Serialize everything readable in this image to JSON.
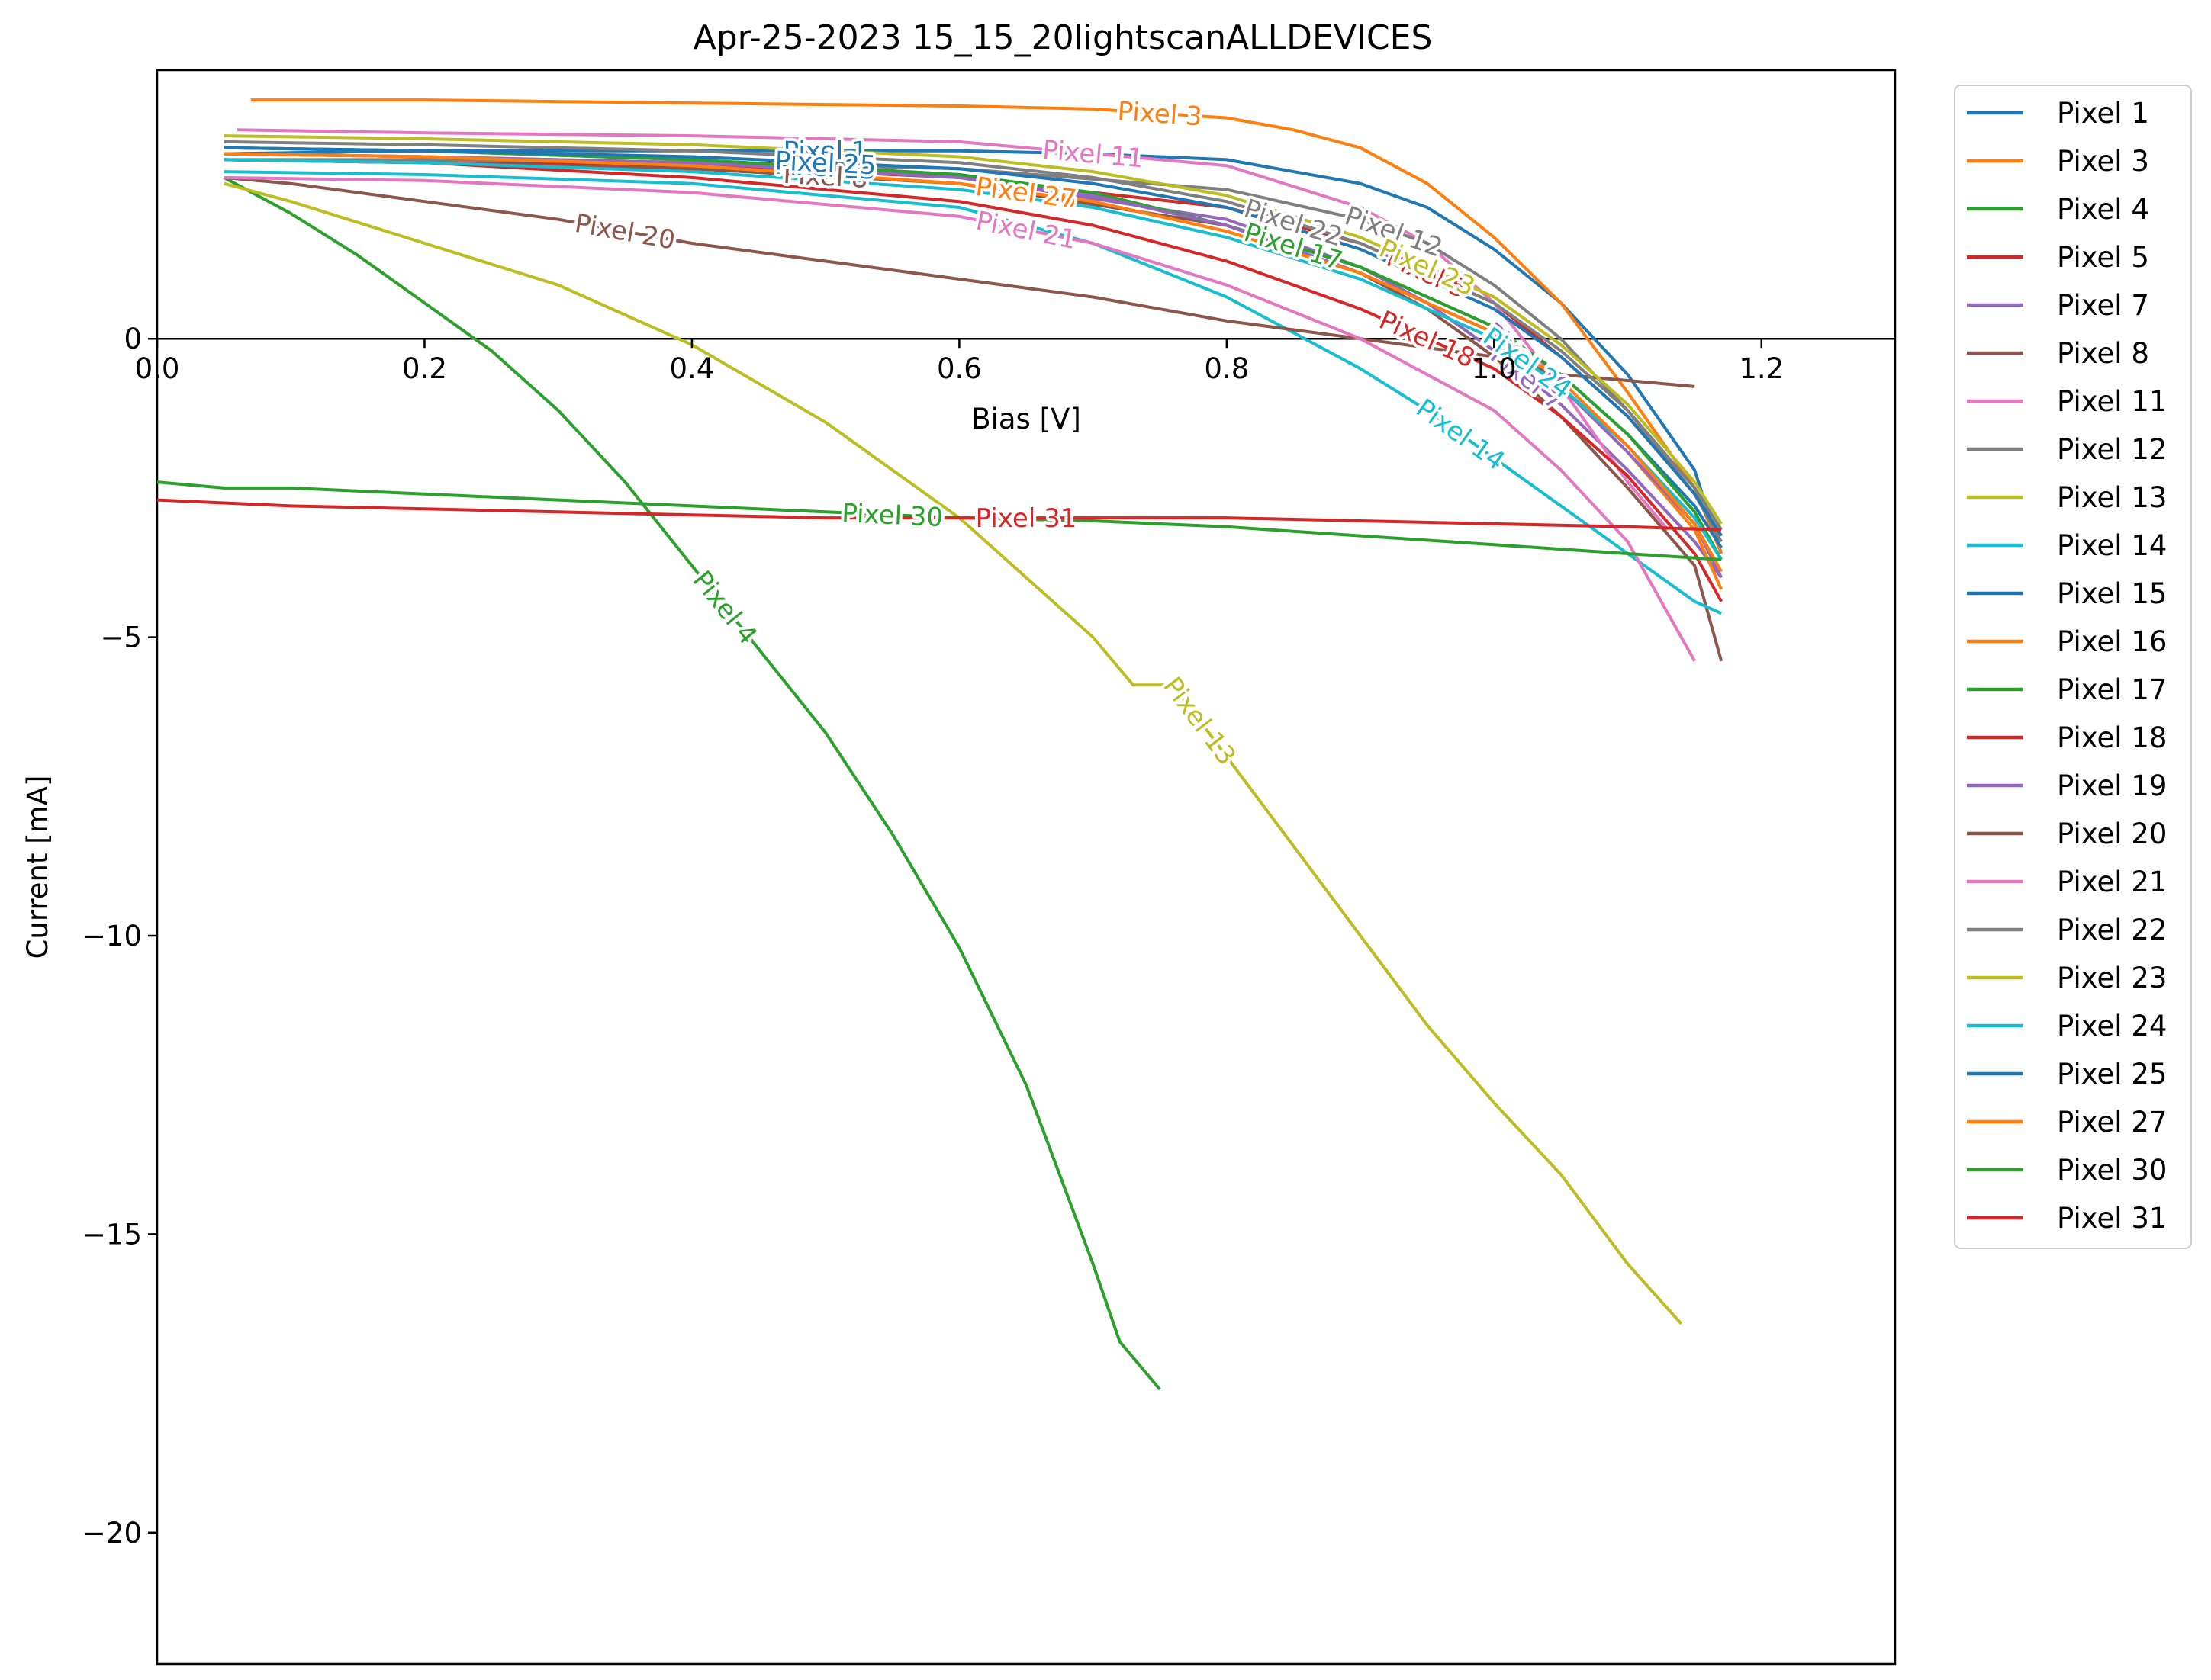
{
  "chart_data": {
    "type": "line",
    "title": "Apr-25-2023 15_15_20lightscanALLDEVICES",
    "xlabel": "Bias [V]",
    "ylabel": "Current [mA]",
    "xlim": [
      0.0,
      1.3
    ],
    "ylim": [
      -22.2,
      4.5
    ],
    "xticks": [
      0.0,
      0.2,
      0.4,
      0.6,
      0.8,
      1.0,
      1.2
    ],
    "xtick_labels": [
      "0.0",
      "0.2",
      "0.4",
      "0.6",
      "0.8",
      "1.0",
      "1.2"
    ],
    "yticks": [
      0,
      -5,
      -10,
      -15,
      -20
    ],
    "ytick_labels": [
      "0",
      "−5",
      "−10",
      "−15",
      "−20"
    ],
    "grid": false,
    "legend_position": "outside-right",
    "series": [
      {
        "name": "Pixel 1",
        "color": "#1f77b4",
        "x": [
          0.05,
          0.2,
          0.4,
          0.6,
          0.7,
          0.8,
          0.9,
          0.95,
          1.0,
          1.05,
          1.1,
          1.15,
          1.17
        ],
        "y": [
          3.1,
          3.15,
          3.15,
          3.15,
          3.1,
          3.0,
          2.6,
          2.2,
          1.5,
          0.6,
          -0.6,
          -2.2,
          -3.6
        ],
        "label": "Pixel 1"
      },
      {
        "name": "Pixel 3",
        "color": "#ff7f0e",
        "x": [
          0.07,
          0.2,
          0.4,
          0.6,
          0.7,
          0.8,
          0.85,
          0.9,
          0.95,
          1.0,
          1.05,
          1.1,
          1.15,
          1.17
        ],
        "y": [
          4.0,
          4.0,
          3.95,
          3.9,
          3.85,
          3.7,
          3.5,
          3.2,
          2.6,
          1.7,
          0.6,
          -0.9,
          -2.5,
          -3.6
        ],
        "label": "Pixel 3"
      },
      {
        "name": "Pixel 4",
        "color": "#2ca02c",
        "x": [
          0.05,
          0.1,
          0.15,
          0.2,
          0.25,
          0.3,
          0.35,
          0.4,
          0.45,
          0.5,
          0.55,
          0.6,
          0.65,
          0.7,
          0.72,
          0.75
        ],
        "y": [
          2.7,
          2.1,
          1.4,
          0.6,
          -0.2,
          -1.2,
          -2.4,
          -3.8,
          -5.2,
          -6.6,
          -8.3,
          -10.2,
          -12.5,
          -15.5,
          -16.8,
          -17.6
        ],
        "label": "Pixel 4"
      },
      {
        "name": "Pixel 5",
        "color": "#d62728",
        "x": [
          0.05,
          0.2,
          0.4,
          0.6,
          0.8,
          0.9,
          1.0,
          1.05,
          1.1,
          1.15,
          1.17
        ],
        "y": [
          3.0,
          2.95,
          2.9,
          2.7,
          2.2,
          1.6,
          0.6,
          -0.3,
          -1.3,
          -2.6,
          -3.3
        ],
        "label": "Pixel 5"
      },
      {
        "name": "Pixel 7",
        "color": "#9467bd",
        "x": [
          0.05,
          0.2,
          0.4,
          0.6,
          0.8,
          0.9,
          0.95,
          1.0,
          1.05,
          1.1,
          1.15,
          1.17
        ],
        "y": [
          3.1,
          3.05,
          2.95,
          2.7,
          2.0,
          1.2,
          0.6,
          -0.2,
          -1.1,
          -2.2,
          -3.4,
          -4.0
        ],
        "label": "Pixel 7"
      },
      {
        "name": "Pixel 8",
        "color": "#8c564b",
        "x": [
          0.05,
          0.2,
          0.4,
          0.6,
          0.8,
          0.9,
          0.95,
          1.0,
          1.05,
          1.1,
          1.15,
          1.17
        ],
        "y": [
          3.0,
          2.95,
          2.85,
          2.6,
          1.9,
          1.1,
          0.5,
          -0.3,
          -1.3,
          -2.5,
          -3.8,
          -5.4
        ],
        "label": "Pixel 8"
      },
      {
        "name": "Pixel 11",
        "color": "#e377c2",
        "x": [
          0.06,
          0.2,
          0.4,
          0.6,
          0.8,
          0.9,
          0.95,
          1.0,
          1.05,
          1.1,
          1.13
        ],
        "y": [
          3.5,
          3.45,
          3.4,
          3.3,
          2.9,
          2.2,
          1.6,
          0.6,
          -0.8,
          -2.4,
          -3.2
        ],
        "label": "Pixel 11"
      },
      {
        "name": "Pixel 12",
        "color": "#7f7f7f",
        "x": [
          0.05,
          0.2,
          0.4,
          0.6,
          0.8,
          0.9,
          0.95,
          1.0,
          1.05,
          1.1,
          1.15,
          1.17
        ],
        "y": [
          3.0,
          3.0,
          2.95,
          2.85,
          2.5,
          2.0,
          1.6,
          0.9,
          0.0,
          -1.2,
          -2.6,
          -3.4
        ],
        "label": "Pixel 12"
      },
      {
        "name": "Pixel 13",
        "color": "#bcbd22",
        "x": [
          0.05,
          0.1,
          0.2,
          0.3,
          0.4,
          0.5,
          0.6,
          0.7,
          0.73,
          0.76,
          0.8,
          0.85,
          0.9,
          0.95,
          1.0,
          1.05,
          1.1,
          1.14
        ],
        "y": [
          2.6,
          2.3,
          1.6,
          0.9,
          -0.1,
          -1.4,
          -3.0,
          -5.0,
          -5.8,
          -5.8,
          -7.0,
          -8.5,
          -10.0,
          -11.5,
          -12.8,
          -14.0,
          -15.5,
          -16.5
        ],
        "label": "Pixel 13"
      },
      {
        "name": "Pixel 14",
        "color": "#17becf",
        "x": [
          0.05,
          0.2,
          0.4,
          0.6,
          0.7,
          0.8,
          0.85,
          0.9,
          0.95,
          1.0,
          1.05,
          1.1,
          1.15,
          1.17
        ],
        "y": [
          2.8,
          2.75,
          2.6,
          2.2,
          1.6,
          0.7,
          0.1,
          -0.5,
          -1.2,
          -2.0,
          -2.8,
          -3.6,
          -4.4,
          -4.6
        ],
        "label": "Pixel 14"
      },
      {
        "name": "Pixel 15",
        "color": "#1f77b4",
        "x": [
          0.05,
          0.2,
          0.4,
          0.6,
          0.7,
          0.8,
          0.9,
          1.0,
          1.05,
          1.1,
          1.15,
          1.17
        ],
        "y": [
          3.2,
          3.15,
          3.0,
          2.75,
          2.4,
          1.9,
          1.2,
          0.2,
          -0.6,
          -1.6,
          -2.8,
          -3.5
        ],
        "label": "Pixel 15"
      },
      {
        "name": "Pixel 16",
        "color": "#ff7f0e",
        "x": [
          0.05,
          0.2,
          0.4,
          0.6,
          0.7,
          0.8,
          0.9,
          1.0,
          1.05,
          1.1,
          1.15,
          1.17
        ],
        "y": [
          3.1,
          3.05,
          2.9,
          2.6,
          2.3,
          1.8,
          1.1,
          0.1,
          -0.8,
          -1.9,
          -3.2,
          -4.2
        ],
        "label": "Pixel 16"
      },
      {
        "name": "Pixel 17",
        "color": "#2ca02c",
        "x": [
          0.05,
          0.2,
          0.4,
          0.6,
          0.7,
          0.8,
          0.9,
          1.0,
          1.05,
          1.1,
          1.15,
          1.17
        ],
        "y": [
          3.2,
          3.15,
          3.0,
          2.75,
          2.45,
          1.9,
          1.2,
          0.2,
          -0.6,
          -1.6,
          -2.9,
          -3.7
        ],
        "label": "Pixel 17"
      },
      {
        "name": "Pixel 18",
        "color": "#d62728",
        "x": [
          0.05,
          0.2,
          0.4,
          0.6,
          0.7,
          0.8,
          0.9,
          1.0,
          1.05,
          1.1,
          1.15,
          1.17
        ],
        "y": [
          3.0,
          2.95,
          2.7,
          2.3,
          1.9,
          1.3,
          0.5,
          -0.5,
          -1.3,
          -2.3,
          -3.6,
          -4.4
        ],
        "label": "Pixel 18"
      },
      {
        "name": "Pixel 19",
        "color": "#9467bd",
        "x": [
          0.05,
          0.2,
          0.4,
          0.6,
          0.7,
          0.8,
          0.9,
          1.0,
          1.05,
          1.1,
          1.15,
          1.17
        ],
        "y": [
          3.1,
          3.05,
          2.95,
          2.7,
          2.4,
          1.9,
          1.1,
          0.1,
          -0.8,
          -1.9,
          -3.1,
          -4.0
        ],
        "label": "Pixel 19"
      },
      {
        "name": "Pixel 20",
        "color": "#8c564b",
        "x": [
          0.05,
          0.1,
          0.2,
          0.3,
          0.4,
          0.5,
          0.6,
          0.7,
          0.8,
          0.9,
          1.0,
          1.05,
          1.1,
          1.15
        ],
        "y": [
          2.7,
          2.6,
          2.3,
          2.0,
          1.6,
          1.3,
          1.0,
          0.7,
          0.3,
          0.0,
          -0.3,
          -0.6,
          -0.7,
          -0.8
        ],
        "label": "Pixel 20"
      },
      {
        "name": "Pixel 21",
        "color": "#e377c2",
        "x": [
          0.05,
          0.2,
          0.4,
          0.6,
          0.7,
          0.8,
          0.9,
          1.0,
          1.05,
          1.1,
          1.15
        ],
        "y": [
          2.7,
          2.65,
          2.45,
          2.05,
          1.6,
          0.9,
          0.0,
          -1.2,
          -2.2,
          -3.4,
          -5.4
        ],
        "label": "Pixel 21"
      },
      {
        "name": "Pixel 22",
        "color": "#7f7f7f",
        "x": [
          0.05,
          0.2,
          0.4,
          0.6,
          0.7,
          0.8,
          0.9,
          1.0,
          1.05,
          1.1,
          1.15,
          1.17
        ],
        "y": [
          3.3,
          3.25,
          3.15,
          2.95,
          2.7,
          2.3,
          1.6,
          0.6,
          -0.2,
          -1.2,
          -2.5,
          -3.2
        ],
        "label": "Pixel 22"
      },
      {
        "name": "Pixel 23",
        "color": "#bcbd22",
        "x": [
          0.05,
          0.2,
          0.4,
          0.6,
          0.7,
          0.8,
          0.9,
          1.0,
          1.05,
          1.1,
          1.15,
          1.17
        ],
        "y": [
          3.4,
          3.35,
          3.25,
          3.05,
          2.8,
          2.4,
          1.7,
          0.7,
          -0.1,
          -1.1,
          -2.4,
          -3.1
        ],
        "label": "Pixel 23"
      },
      {
        "name": "Pixel 24",
        "color": "#17becf",
        "x": [
          0.05,
          0.2,
          0.4,
          0.6,
          0.7,
          0.8,
          0.9,
          1.0,
          1.05,
          1.1,
          1.15,
          1.17
        ],
        "y": [
          3.0,
          2.95,
          2.8,
          2.5,
          2.2,
          1.7,
          1.0,
          0.0,
          -0.8,
          -1.8,
          -3.0,
          -3.7
        ],
        "label": "Pixel 24"
      },
      {
        "name": "Pixel 25",
        "color": "#1f77b4",
        "x": [
          0.05,
          0.2,
          0.4,
          0.6,
          0.7,
          0.8,
          0.9,
          1.0,
          1.05,
          1.1,
          1.15,
          1.17
        ],
        "y": [
          3.2,
          3.15,
          3.05,
          2.85,
          2.6,
          2.2,
          1.5,
          0.5,
          -0.3,
          -1.3,
          -2.6,
          -3.3
        ],
        "label": "Pixel 25"
      },
      {
        "name": "Pixel 27",
        "color": "#ff7f0e",
        "x": [
          0.05,
          0.2,
          0.4,
          0.6,
          0.7,
          0.8,
          0.9,
          1.0,
          1.05,
          1.1,
          1.15,
          1.17
        ],
        "y": [
          3.1,
          3.05,
          2.9,
          2.6,
          2.3,
          1.8,
          1.1,
          0.1,
          -0.7,
          -1.8,
          -3.1,
          -3.9
        ],
        "label": "Pixel 27"
      },
      {
        "name": "Pixel 30",
        "color": "#2ca02c",
        "x": [
          0.0,
          0.05,
          0.1,
          0.2,
          0.3,
          0.4,
          0.5,
          0.6,
          0.7,
          0.8,
          0.9,
          1.0,
          1.1,
          1.17
        ],
        "y": [
          -2.4,
          -2.5,
          -2.5,
          -2.6,
          -2.7,
          -2.8,
          -2.9,
          -3.0,
          -3.05,
          -3.15,
          -3.3,
          -3.45,
          -3.6,
          -3.7
        ],
        "label": "Pixel 30"
      },
      {
        "name": "Pixel 31",
        "color": "#d62728",
        "x": [
          0.0,
          0.05,
          0.1,
          0.2,
          0.3,
          0.4,
          0.5,
          0.6,
          0.7,
          0.8,
          0.9,
          1.0,
          1.1,
          1.17
        ],
        "y": [
          -2.7,
          -2.75,
          -2.8,
          -2.85,
          -2.9,
          -2.95,
          -3.0,
          -3.0,
          -3.0,
          -3.0,
          -3.05,
          -3.1,
          -3.15,
          -3.2
        ],
        "label": "Pixel 31"
      }
    ]
  }
}
